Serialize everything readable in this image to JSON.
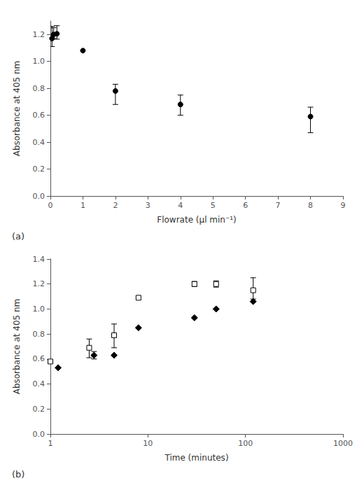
{
  "chart_data": [
    {
      "type": "scatter",
      "title": "(a)",
      "xlabel": "Flowrate (µl min⁻¹)",
      "ylabel": "Absorbance at 405 nm",
      "xlim": [
        0,
        9
      ],
      "ylim": [
        0,
        1.3
      ],
      "xticks": [
        0,
        1,
        2,
        3,
        4,
        5,
        6,
        7,
        8,
        9
      ],
      "yticks": [
        {
          "value": 0,
          "label": "0.0"
        },
        0.2,
        0.4,
        0.6,
        0.8,
        {
          "value": 1.0,
          "label": "1.0"
        },
        1.2
      ],
      "grid": false,
      "series": [
        {
          "color": "#000000",
          "marker": "circle",
          "x": [
            0.05,
            0.1,
            0.2,
            1.0,
            2.0,
            4.0,
            8.0
          ],
          "values": [
            1.17,
            1.2,
            1.205,
            1.08,
            0.78,
            0.68,
            0.59
          ],
          "yerr_low": [
            0.06,
            0.03,
            0.04,
            0.0,
            0.1,
            0.08,
            0.12
          ],
          "yerr_high": [
            0.09,
            0.05,
            0.06,
            0.0,
            0.05,
            0.07,
            0.07
          ]
        }
      ]
    },
    {
      "type": "scatter",
      "title": "(b)",
      "xlabel": "Time (minutes)",
      "ylabel": "Absorbance at 405 nm",
      "log": "x",
      "xlim": [
        1,
        1000
      ],
      "ylim": [
        0,
        1.4
      ],
      "xticks": [
        1,
        10,
        100,
        1000
      ],
      "yticks": [
        {
          "value": 0,
          "label": "0.0"
        },
        0.2,
        0.4,
        0.6,
        0.8,
        {
          "value": 1.0,
          "label": "1.0"
        },
        1.2,
        1.4
      ],
      "grid": false,
      "series": [
        {
          "color": "#000000",
          "marker": "open-square",
          "x": [
            1.0,
            2.5,
            4.5,
            8.0,
            30.0,
            50.0,
            120.0
          ],
          "values": [
            0.58,
            0.69,
            0.79,
            1.09,
            1.2,
            1.2,
            1.15
          ],
          "yerr_low": [
            0.0,
            0.08,
            0.1,
            0.0,
            0.02,
            0.025,
            0.07
          ],
          "yerr_high": [
            0.0,
            0.07,
            0.09,
            0.0,
            0.02,
            0.025,
            0.1
          ]
        },
        {
          "color": "#000000",
          "marker": "diamond",
          "x": [
            1.2,
            2.8,
            4.5,
            8.0,
            30.0,
            50.0,
            120.0
          ],
          "values": [
            0.53,
            0.63,
            0.63,
            0.85,
            0.93,
            1.0,
            1.06
          ],
          "yerr_low": [
            0.0,
            0.03,
            0.0,
            0.0,
            0.0,
            0.0,
            0.0
          ],
          "yerr_high": [
            0.0,
            0.03,
            0.0,
            0.0,
            0.0,
            0.0,
            0.0
          ]
        }
      ]
    }
  ]
}
